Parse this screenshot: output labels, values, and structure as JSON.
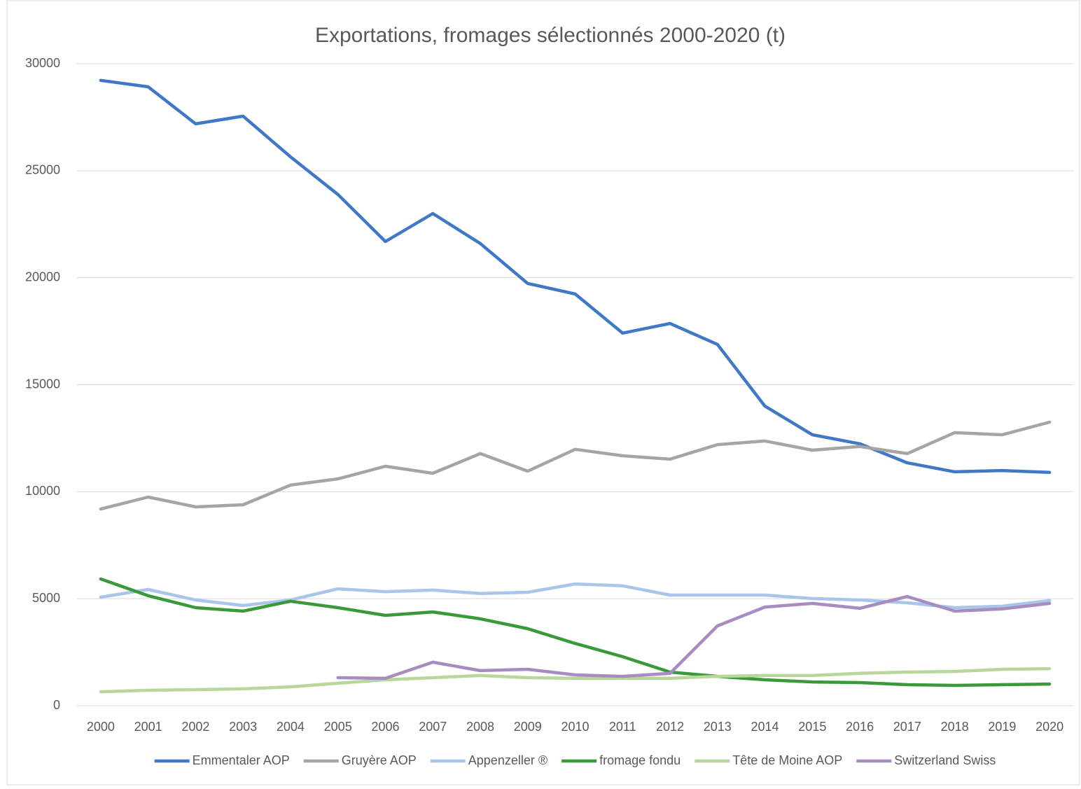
{
  "chart_data": {
    "type": "line",
    "title": "Exportations, fromages sélectionnés 2000-2020 (t)",
    "categories": [
      "2000",
      "2001",
      "2002",
      "2003",
      "2004",
      "2005",
      "2006",
      "2007",
      "2008",
      "2009",
      "2010",
      "2011",
      "2012",
      "2013",
      "2014",
      "2015",
      "2016",
      "2017",
      "2018",
      "2019",
      "2020"
    ],
    "ylim": [
      0,
      30000
    ],
    "yticks": [
      0,
      5000,
      10000,
      15000,
      20000,
      25000,
      30000
    ],
    "grid": true,
    "legend": "bottom",
    "series": [
      {
        "name": "Emmentaler AOP",
        "color": "#4078c8",
        "values": [
          29220,
          28920,
          27190,
          27550,
          25650,
          23890,
          21690,
          23000,
          21600,
          19730,
          19240,
          17410,
          17860,
          16880,
          14000,
          12660,
          12240,
          11350,
          10930,
          10990,
          10900
        ]
      },
      {
        "name": "Gruyère AOP",
        "color": "#a5a5a5",
        "values": [
          9190,
          9750,
          9290,
          9390,
          10310,
          10600,
          11190,
          10860,
          11780,
          10960,
          11980,
          11680,
          11520,
          12200,
          12370,
          11940,
          12110,
          11780,
          12760,
          12660,
          13250
        ]
      },
      {
        "name": "Appenzeller ®",
        "color": "#a9c6ea",
        "values": [
          5070,
          5430,
          4940,
          4680,
          4940,
          5460,
          5330,
          5400,
          5240,
          5300,
          5690,
          5600,
          5170,
          5170,
          5170,
          5010,
          4940,
          4810,
          4580,
          4650,
          4910
        ]
      },
      {
        "name": "fromage fondu",
        "color": "#3a9a3a",
        "values": [
          5920,
          5140,
          4580,
          4420,
          4880,
          4580,
          4220,
          4380,
          4060,
          3600,
          2910,
          2290,
          1570,
          1370,
          1210,
          1110,
          1080,
          980,
          950,
          980,
          1010
        ]
      },
      {
        "name": "Tête de Moine AOP",
        "color": "#b9d79a",
        "values": [
          650,
          720,
          750,
          790,
          880,
          1050,
          1210,
          1310,
          1410,
          1310,
          1280,
          1280,
          1280,
          1370,
          1410,
          1410,
          1510,
          1570,
          1600,
          1700,
          1730
        ]
      },
      {
        "name": "Switzerland Swiss",
        "color": "#a88cc0",
        "values": [
          null,
          null,
          null,
          null,
          null,
          1310,
          1280,
          2030,
          1640,
          1700,
          1440,
          1370,
          1510,
          3730,
          4610,
          4780,
          4550,
          5100,
          4420,
          4520,
          4780
        ]
      }
    ]
  }
}
